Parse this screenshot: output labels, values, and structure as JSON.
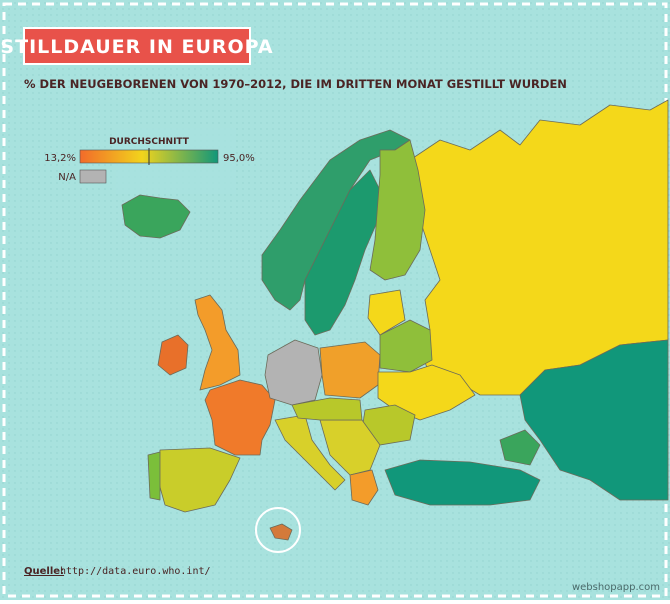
{
  "header": {
    "title": "STILLDAUER IN EUROPA",
    "subtitle": "% DER NEUGEBORENEN VON 1970–2012, DIE IM DRITTEN MONAT GESTILLT WURDEN"
  },
  "legend": {
    "title": "DURCHSCHNITT",
    "min": "13,2%",
    "max": "95,0%",
    "na": "N/A"
  },
  "source": {
    "label": "Quelle:",
    "url": "http://data.euro.who.int/"
  },
  "watermark": "webshopapp.com"
}
